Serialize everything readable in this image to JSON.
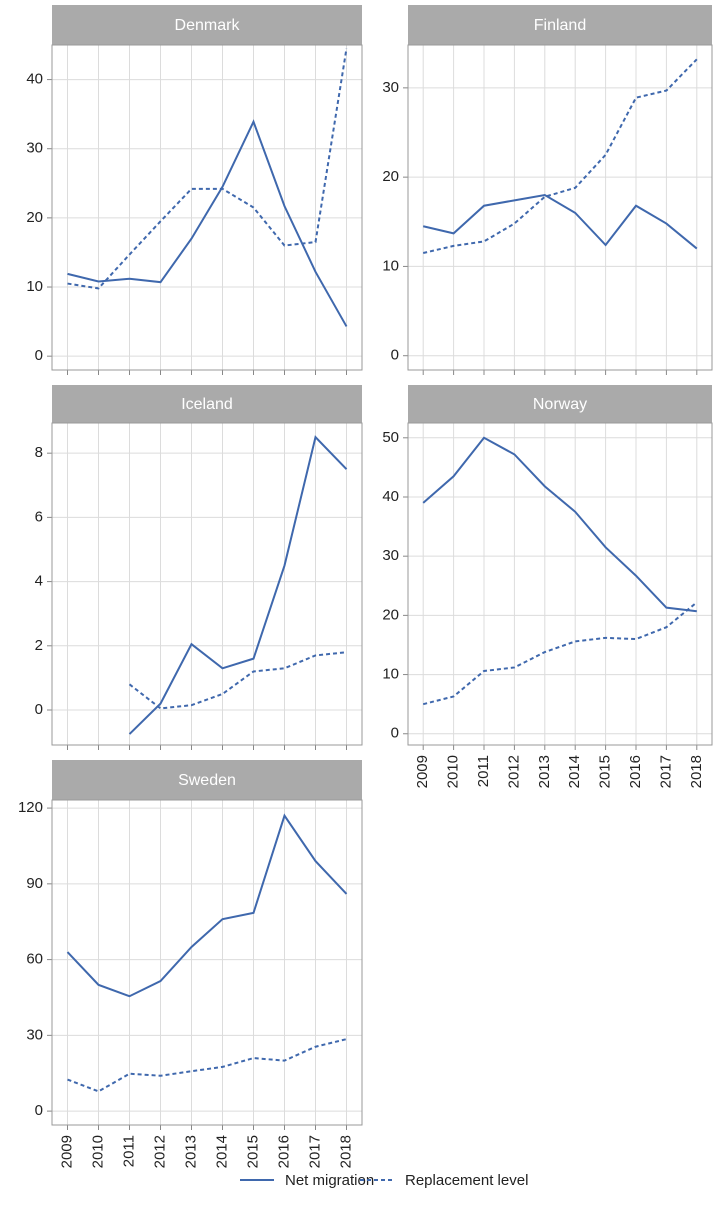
{
  "chart_data": [
    {
      "type": "line",
      "title": "Denmark",
      "x": [
        2009,
        2010,
        2011,
        2012,
        2013,
        2014,
        2015,
        2016,
        2017,
        2018
      ],
      "xlim": [
        2008.5,
        2018.5
      ],
      "xticks": [
        2009,
        2010,
        2011,
        2012,
        2013,
        2014,
        2015,
        2016,
        2017,
        2018
      ],
      "ylim": [
        -2,
        45
      ],
      "yticks": [
        0,
        10,
        20,
        30,
        40
      ],
      "grid": true,
      "series": [
        {
          "name": "Net migration",
          "color": "#3f68ad",
          "linestyle": "solid",
          "values": [
            11.9,
            10.8,
            11.2,
            10.7,
            17,
            24.5,
            33.9,
            21.7,
            12.2,
            4.3
          ]
        },
        {
          "name": "Replacement level",
          "color": "#3f68ad",
          "linestyle": "dashed",
          "values": [
            10.5,
            9.8,
            14.7,
            19.5,
            24.2,
            24.2,
            21.5,
            16,
            16.5,
            44.5
          ]
        }
      ]
    },
    {
      "type": "line",
      "title": "Finland",
      "x": [
        2009,
        2010,
        2011,
        2012,
        2013,
        2014,
        2015,
        2016,
        2017,
        2018
      ],
      "xlim": [
        2008.5,
        2018.5
      ],
      "xticks": [
        2009,
        2010,
        2011,
        2012,
        2013,
        2014,
        2015,
        2016,
        2017,
        2018
      ],
      "ylim": [
        -1.6,
        34.8
      ],
      "yticks": [
        0,
        10,
        20,
        30
      ],
      "grid": true,
      "series": [
        {
          "name": "Net migration",
          "color": "#3f68ad",
          "linestyle": "solid",
          "values": [
            14.5,
            13.7,
            16.8,
            17.4,
            18,
            16,
            12.4,
            16.8,
            14.8,
            12
          ]
        },
        {
          "name": "Replacement level",
          "color": "#3f68ad",
          "linestyle": "dashed",
          "values": [
            11.5,
            12.3,
            12.8,
            14.8,
            17.8,
            18.8,
            22.5,
            28.9,
            29.7,
            33.2
          ]
        }
      ]
    },
    {
      "type": "line",
      "title": "Iceland",
      "x": [
        2009,
        2010,
        2011,
        2012,
        2013,
        2014,
        2015,
        2016,
        2017,
        2018
      ],
      "xlim": [
        2008.5,
        2018.5
      ],
      "xticks": [
        2009,
        2010,
        2011,
        2012,
        2013,
        2014,
        2015,
        2016,
        2017,
        2018
      ],
      "ylim": [
        -1.09,
        8.94
      ],
      "yticks": [
        0,
        2,
        4,
        6,
        8
      ],
      "grid": true,
      "series": [
        {
          "name": "Net migration",
          "color": "#3f68ad",
          "linestyle": "solid",
          "values": [
            null,
            null,
            -0.75,
            0.2,
            2.05,
            1.3,
            1.6,
            4.5,
            8.5,
            7.5
          ]
        },
        {
          "name": "Replacement level",
          "color": "#3f68ad",
          "linestyle": "dashed",
          "values": [
            null,
            null,
            0.8,
            0.05,
            0.15,
            0.5,
            1.2,
            1.3,
            1.7,
            1.8
          ]
        }
      ]
    },
    {
      "type": "line",
      "title": "Norway",
      "x": [
        2009,
        2010,
        2011,
        2012,
        2013,
        2014,
        2015,
        2016,
        2017,
        2018
      ],
      "xlim": [
        2008.5,
        2018.5
      ],
      "xticks": [
        2009,
        2010,
        2011,
        2012,
        2013,
        2014,
        2015,
        2016,
        2017,
        2018
      ],
      "ylim": [
        -1.9,
        52.5
      ],
      "yticks": [
        0,
        10,
        20,
        30,
        40,
        50
      ],
      "grid": true,
      "series": [
        {
          "name": "Net migration",
          "color": "#3f68ad",
          "linestyle": "solid",
          "values": [
            39,
            43.5,
            50,
            47.2,
            41.8,
            37.5,
            31.5,
            26.7,
            21.3,
            20.7
          ]
        },
        {
          "name": "Replacement level",
          "color": "#3f68ad",
          "linestyle": "dashed",
          "values": [
            5,
            6.3,
            10.6,
            11.2,
            13.8,
            15.6,
            16.2,
            16,
            18,
            22.2
          ]
        }
      ]
    },
    {
      "type": "line",
      "title": "Sweden",
      "x": [
        2009,
        2010,
        2011,
        2012,
        2013,
        2014,
        2015,
        2016,
        2017,
        2018
      ],
      "xlim": [
        2008.5,
        2018.5
      ],
      "xticks": [
        2009,
        2010,
        2011,
        2012,
        2013,
        2014,
        2015,
        2016,
        2017,
        2018
      ],
      "ylim": [
        -5.5,
        123.2
      ],
      "yticks": [
        0,
        30,
        60,
        90,
        120
      ],
      "grid": true,
      "series": [
        {
          "name": "Net migration",
          "color": "#3f68ad",
          "linestyle": "solid",
          "values": [
            63,
            50,
            45.5,
            51.5,
            65,
            76,
            78.5,
            117,
            99,
            86
          ]
        },
        {
          "name": "Replacement level",
          "color": "#3f68ad",
          "linestyle": "dashed",
          "values": [
            12.5,
            7.8,
            14.8,
            14,
            15.8,
            17.5,
            21,
            20,
            25.5,
            28.5
          ]
        }
      ]
    }
  ]
}
